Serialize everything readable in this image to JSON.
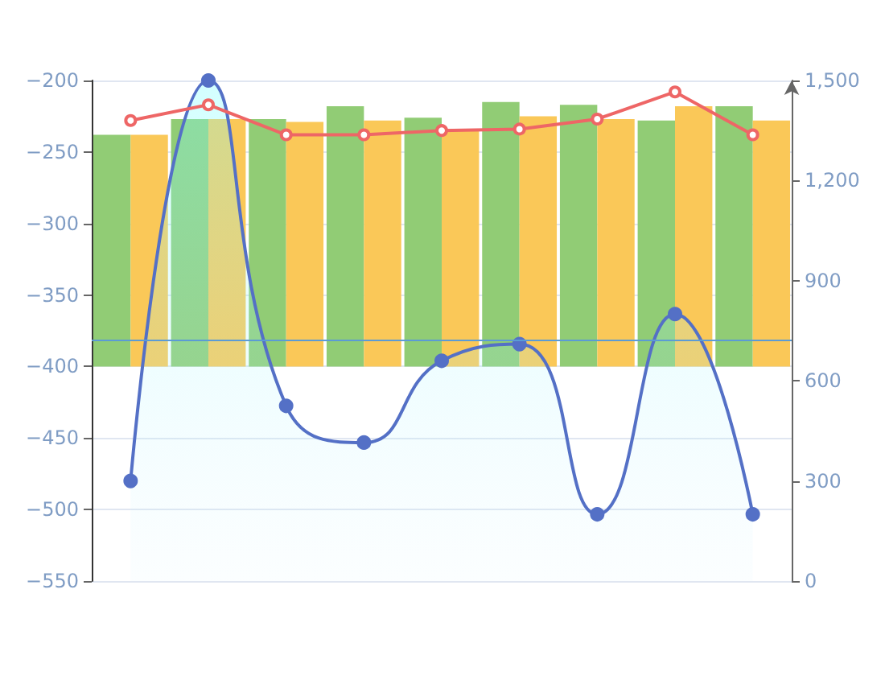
{
  "chart_data": {
    "type": "bar",
    "categories": [
      null,
      null,
      null,
      null,
      null,
      null,
      null,
      null,
      null
    ],
    "series": [
      {
        "color": "#91cc75",
        "base": [
          -400,
          -400,
          -400,
          -400,
          -400,
          -400,
          -400,
          -400,
          -400
        ],
        "values": [
          162,
          173,
          173,
          182,
          174,
          185,
          183,
          172,
          182
        ]
      },
      {
        "color": "#fac858",
        "base": [
          -400,
          -400,
          -400,
          -400,
          -400,
          -400,
          -400,
          -400,
          -400
        ],
        "values": [
          162,
          173,
          171,
          172,
          166,
          175,
          173,
          182,
          172
        ]
      },
      {
        "type": "line",
        "color": "#ee6666",
        "marker": "circle",
        "values": [
          -228,
          -217,
          -238,
          -238,
          -235,
          -234,
          -227,
          -208,
          -238
        ]
      },
      {
        "type": "area",
        "axis": "y2",
        "color": "#5470c6",
        "marker": "circle",
        "values": [
          300,
          1500,
          525,
          415,
          660,
          710,
          200,
          800,
          200
        ]
      }
    ],
    "ylim": [
      -550,
      -200
    ],
    "yticks": [
      -550,
      -500,
      -450,
      -400,
      -350,
      -300,
      -250,
      -200
    ],
    "y2lim": [
      0,
      1500
    ],
    "y2ticks": [
      0,
      300,
      600,
      900,
      {
        "value": 1200,
        "label": "1,200"
      },
      {
        "value": 1500,
        "label": "1,500"
      }
    ],
    "grid": "y",
    "tick_labels": "y",
    "ref_lines": [
      {
        "axis": "y2",
        "value": 720,
        "color": "#5b9bd5"
      }
    ]
  }
}
